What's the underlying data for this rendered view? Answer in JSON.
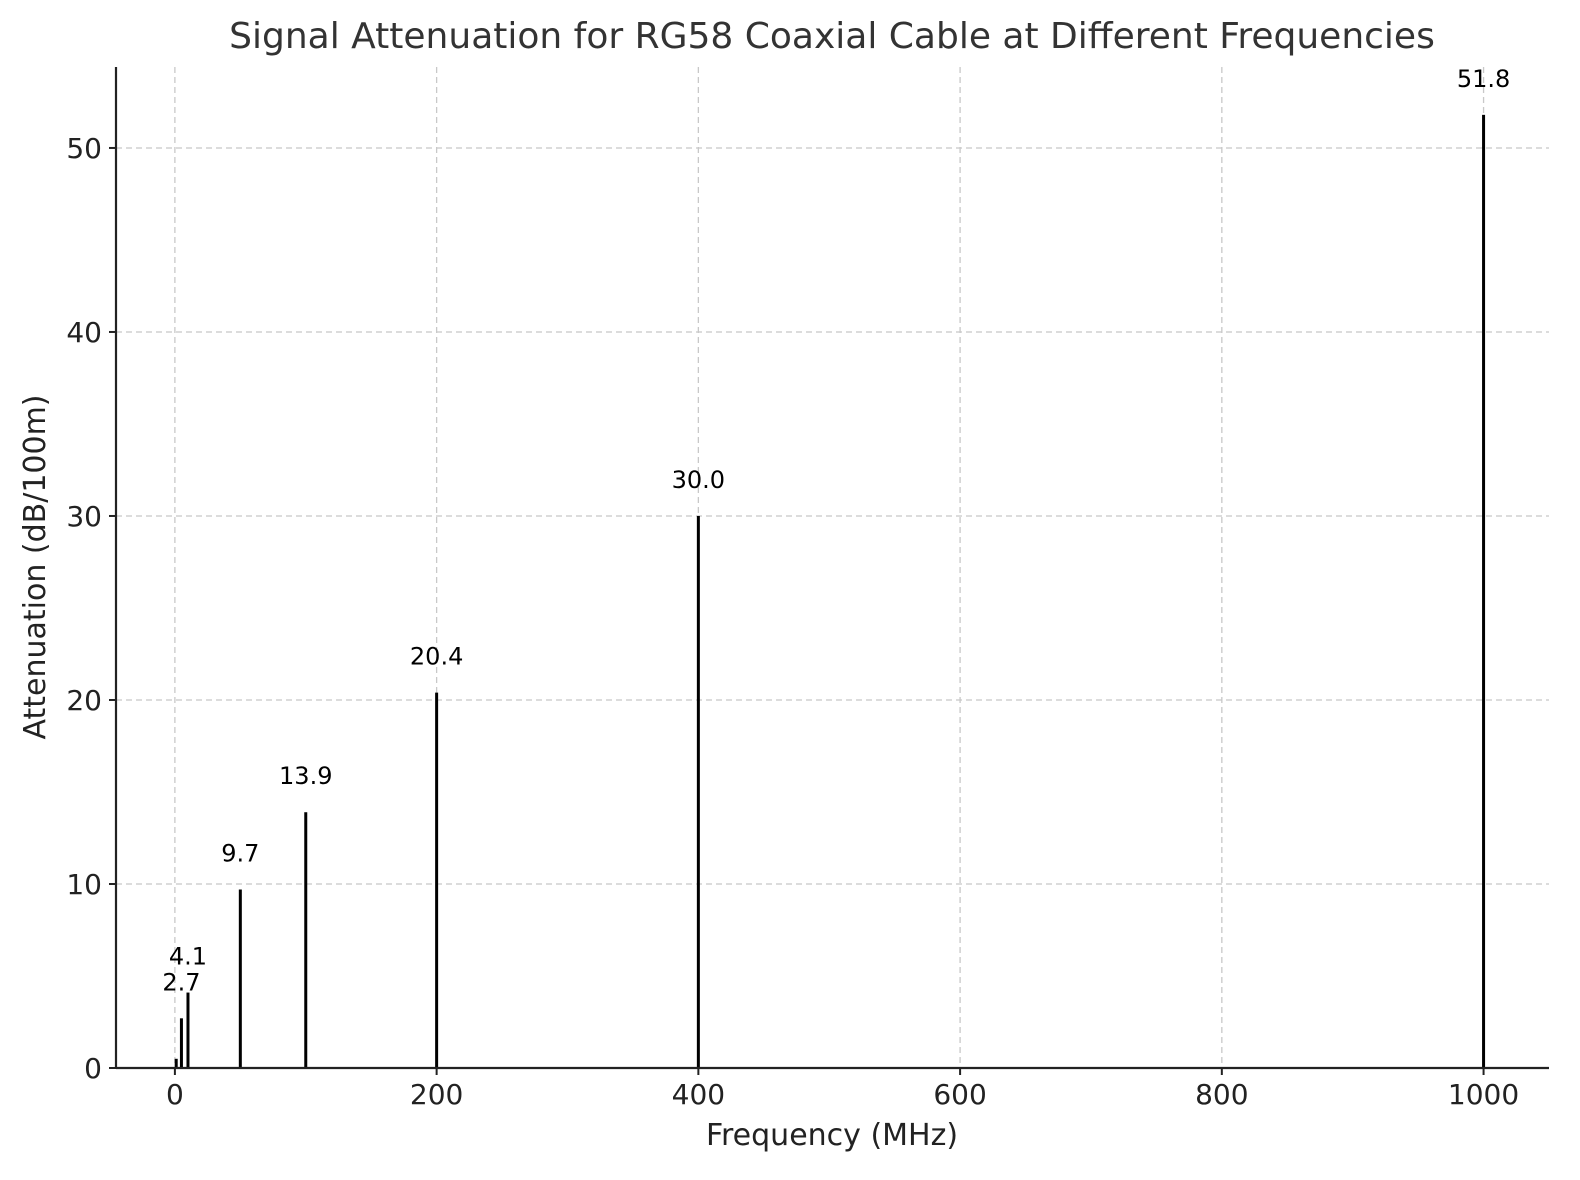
{
  "chart_data": {
    "type": "bar",
    "title": "Signal Attenuation for RG58 Coaxial Cable at Different Frequencies",
    "xlabel": "Frequency (MHz)",
    "ylabel": "Attenuation (dB/100m)",
    "x": [
      1,
      5,
      10,
      50,
      100,
      200,
      400,
      1000
    ],
    "values": [
      0.5,
      2.7,
      4.1,
      9.7,
      13.9,
      20.4,
      30.0,
      51.8
    ],
    "data_labels": [
      "",
      "2.7",
      "4.1",
      "9.7",
      "13.9",
      "20.4",
      "30.0",
      "51.8"
    ],
    "xlim": [
      -45,
      1050
    ],
    "ylim": [
      0,
      54.4
    ],
    "xticks": [
      0,
      200,
      400,
      600,
      800,
      1000
    ],
    "yticks": [
      0,
      10,
      20,
      30,
      40,
      50
    ],
    "grid": true,
    "bar_color": "#000000",
    "bar_width": 3
  }
}
